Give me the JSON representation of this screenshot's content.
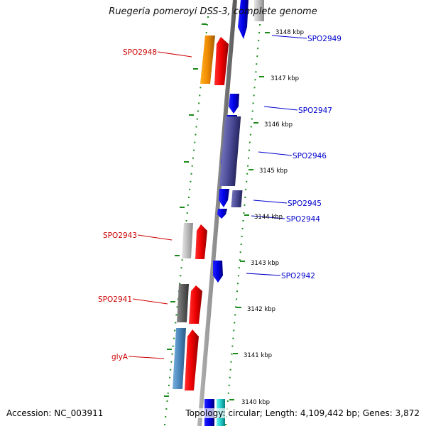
{
  "title": "Ruegeria pomeroyi DSS-3, complete genome",
  "footer": {
    "accession": "Accession: NC_003911",
    "topology": "Topology: circular; Length: 4,109,442 bp; Genes: 3,872"
  },
  "colors": {
    "backbone": "#8a8a8a",
    "tick": "#1a8a1a",
    "forward_label": "#0000cc",
    "reverse_label": "#cc0000"
  },
  "scale_labels": [
    "3148 kbp",
    "3147 kbp",
    "3146 kbp",
    "3145 kbp",
    "3144 kbp",
    "3143 kbp",
    "3142 kbp",
    "3141 kbp",
    "3140 kbp"
  ],
  "gene_labels": {
    "forward": [
      "SPO2949",
      "SPO2947",
      "SPO2946",
      "SPO2945",
      "SPO2944",
      "SPO2942"
    ],
    "reverse": [
      "SPO2948",
      "SPO2943",
      "SPO2941",
      "glyA"
    ]
  }
}
